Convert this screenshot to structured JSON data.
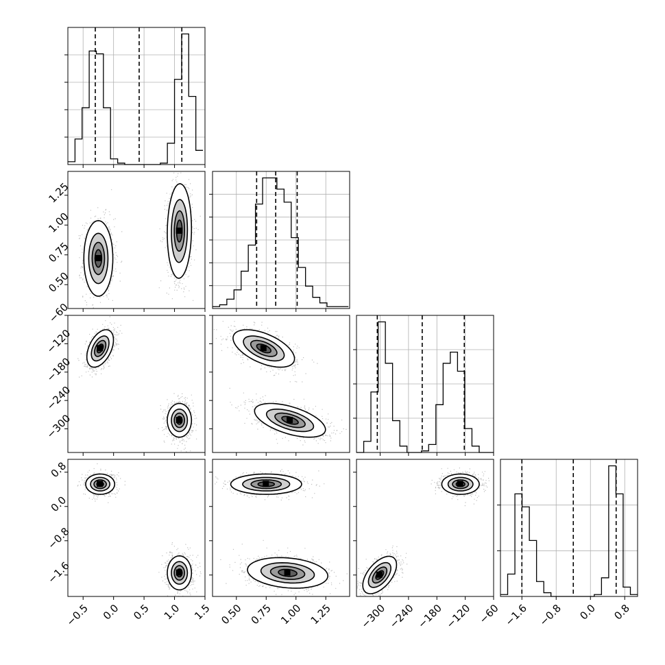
{
  "figure": {
    "type": "corner-plot",
    "parameters": 4,
    "style": {
      "frame_color": "#000000",
      "grid_color": "#b0b0b0",
      "hist_line_color": "#000000",
      "contour_fill_colors": [
        "#ffffff",
        "#cfcfcf",
        "#9a9a9a",
        "#5e5e5e"
      ],
      "point_color": "#6e6e6e",
      "density_peak_color": "#000000"
    }
  },
  "chart_data": [
    {
      "type": "histogram",
      "panel": "hist-0",
      "param": 0,
      "xlim": [
        -0.75,
        1.5
      ],
      "bin_edges": [
        -0.75,
        -0.633,
        -0.517,
        -0.4,
        -0.283,
        -0.167,
        -0.05,
        0.067,
        0.183,
        0.3,
        0.417,
        0.533,
        0.65,
        0.767,
        0.883,
        1.0,
        1.117,
        1.233,
        1.35,
        1.467
      ],
      "counts": [
        2,
        18,
        40,
        80,
        78,
        40,
        4,
        1,
        0,
        0,
        0,
        0,
        0,
        1,
        15,
        60,
        92,
        48,
        10
      ],
      "quantiles": [
        -0.3,
        0.42,
        1.12
      ],
      "y_gridlines": 4
    },
    {
      "type": "histogram",
      "panel": "hist-1",
      "param": 1,
      "xlim": [
        0.3,
        1.45
      ],
      "bin_edges": [
        0.3,
        0.36,
        0.42,
        0.48,
        0.54,
        0.6,
        0.66,
        0.72,
        0.78,
        0.84,
        0.9,
        0.96,
        1.02,
        1.08,
        1.14,
        1.2,
        1.26,
        1.32,
        1.38,
        1.44
      ],
      "counts": [
        1,
        2,
        5,
        10,
        20,
        34,
        56,
        70,
        70,
        64,
        57,
        38,
        22,
        12,
        6,
        3,
        1,
        1,
        1
      ],
      "quantiles": [
        0.67,
        0.83,
        1.01
      ],
      "y_gridlines": 5
    },
    {
      "type": "histogram",
      "panel": "hist-2",
      "param": 2,
      "xlim": [
        -350,
        -60
      ],
      "bin_edges": [
        -350,
        -334.7,
        -319.5,
        -304.2,
        -288.9,
        -273.7,
        -258.4,
        -243.2,
        -227.9,
        -212.6,
        -197.4,
        -182.1,
        -166.8,
        -151.6,
        -136.3,
        -121.1,
        -105.8,
        -90.5,
        -75.3,
        -60
      ],
      "counts": [
        0,
        7,
        38,
        82,
        56,
        20,
        4,
        0,
        0,
        1,
        5,
        30,
        56,
        63,
        51,
        15,
        4,
        0,
        0
      ],
      "quantiles": [
        -306,
        -211,
        -122
      ],
      "y_gridlines": 3
    },
    {
      "type": "histogram",
      "panel": "hist-3",
      "param": 3,
      "xlim": [
        -2.1,
        1.1
      ],
      "bin_edges": [
        -2.1,
        -1.932,
        -1.763,
        -1.595,
        -1.426,
        -1.258,
        -1.089,
        -0.921,
        -0.753,
        -0.584,
        -0.416,
        -0.247,
        -0.079,
        0.089,
        0.258,
        0.426,
        0.595,
        0.763,
        0.932,
        1.1
      ],
      "counts": [
        1,
        12,
        55,
        48,
        30,
        8,
        2,
        0,
        0,
        0,
        0,
        0,
        0,
        1,
        10,
        70,
        55,
        5,
        1
      ],
      "quantiles": [
        -1.6,
        -0.4,
        0.6
      ],
      "y_gridlines": 2
    },
    {
      "type": "density-contours",
      "panel": "pair-1-0",
      "x_param": 0,
      "y_param": 1,
      "xlim": [
        -0.75,
        1.5
      ],
      "ylim": [
        0.3,
        1.45
      ],
      "modes": [
        {
          "center": [
            -0.25,
            0.72
          ],
          "spread": [
            0.12,
            0.16
          ],
          "rho": 0.0,
          "weight": 0.5
        },
        {
          "center": [
            1.08,
            0.95
          ],
          "spread": [
            0.1,
            0.2
          ],
          "rho": 0.05,
          "weight": 0.5
        }
      ]
    },
    {
      "type": "density-contours",
      "panel": "pair-2-0",
      "x_param": 0,
      "y_param": 2,
      "xlim": [
        -0.75,
        1.5
      ],
      "ylim": [
        -350,
        -60
      ],
      "modes": [
        {
          "center": [
            -0.22,
            -130
          ],
          "spread": [
            0.11,
            20
          ],
          "rho": 0.45,
          "weight": 0.5
        },
        {
          "center": [
            1.08,
            -282
          ],
          "spread": [
            0.1,
            18
          ],
          "rho": 0.0,
          "weight": 0.5
        }
      ]
    },
    {
      "type": "density-contours",
      "panel": "pair-2-1",
      "x_param": 1,
      "y_param": 2,
      "xlim": [
        0.3,
        1.45
      ],
      "ylim": [
        -350,
        -60
      ],
      "modes": [
        {
          "center": [
            0.73,
            -130
          ],
          "spread": [
            0.13,
            20
          ],
          "rho": -0.55,
          "weight": 0.5
        },
        {
          "center": [
            0.95,
            -282
          ],
          "spread": [
            0.15,
            18
          ],
          "rho": -0.55,
          "weight": 0.5
        }
      ]
    },
    {
      "type": "density-contours",
      "panel": "pair-3-0",
      "x_param": 0,
      "y_param": 3,
      "xlim": [
        -0.75,
        1.5
      ],
      "ylim": [
        -2.1,
        1.1
      ],
      "modes": [
        {
          "center": [
            -0.22,
            0.52
          ],
          "spread": [
            0.12,
            0.12
          ],
          "rho": 0.0,
          "weight": 0.5
        },
        {
          "center": [
            1.08,
            -1.55
          ],
          "spread": [
            0.1,
            0.2
          ],
          "rho": 0.0,
          "weight": 0.5
        }
      ]
    },
    {
      "type": "density-contours",
      "panel": "pair-3-1",
      "x_param": 1,
      "y_param": 3,
      "xlim": [
        0.3,
        1.45
      ],
      "ylim": [
        -2.1,
        1.1
      ],
      "modes": [
        {
          "center": [
            0.75,
            0.52
          ],
          "spread": [
            0.15,
            0.12
          ],
          "rho": 0.0,
          "weight": 0.5
        },
        {
          "center": [
            0.93,
            -1.55
          ],
          "spread": [
            0.17,
            0.18
          ],
          "rho": -0.2,
          "weight": 0.5
        }
      ]
    },
    {
      "type": "density-contours",
      "panel": "pair-3-2",
      "x_param": 2,
      "y_param": 3,
      "xlim": [
        -350,
        -60
      ],
      "ylim": [
        -2.1,
        1.1
      ],
      "modes": [
        {
          "center": [
            -301,
            -1.6
          ],
          "spread": [
            18,
            0.22
          ],
          "rho": 0.55,
          "weight": 0.5
        },
        {
          "center": [
            -130,
            0.52
          ],
          "spread": [
            20,
            0.12
          ],
          "rho": 0.0,
          "weight": 0.5
        }
      ]
    }
  ],
  "axes": {
    "x_ticks": [
      {
        "param": 0,
        "values": [
          -0.5,
          0.0,
          0.5,
          1.0,
          1.5
        ],
        "labels": [
          "−0.5",
          "0.0",
          "0.5",
          "1.0",
          "1.5"
        ]
      },
      {
        "param": 1,
        "values": [
          0.5,
          0.75,
          1.0,
          1.25
        ],
        "labels": [
          "0.50",
          "0.75",
          "1.00",
          "1.25"
        ]
      },
      {
        "param": 2,
        "values": [
          -300,
          -240,
          -180,
          -120,
          -60
        ],
        "labels": [
          "−300",
          "−240",
          "−180",
          "−120",
          "−60"
        ]
      },
      {
        "param": 3,
        "values": [
          -1.6,
          -0.8,
          0.0,
          0.8
        ],
        "labels": [
          "−1.6",
          "−0.8",
          "0.0",
          "0.8"
        ]
      }
    ],
    "y_ticks": [
      {
        "param": 1,
        "values": [
          0.5,
          0.75,
          1.0,
          1.25
        ],
        "labels": [
          "0.50",
          "0.75",
          "1.00",
          "1.25"
        ]
      },
      {
        "param": 2,
        "values": [
          -300,
          -240,
          -180,
          -120,
          -60
        ],
        "labels": [
          "−300",
          "−240",
          "−180",
          "−120",
          "−60"
        ]
      },
      {
        "param": 3,
        "values": [
          -1.6,
          -0.8,
          0.0,
          0.8
        ],
        "labels": [
          "−1.6",
          "−0.8",
          "0.0",
          "0.8"
        ]
      }
    ]
  }
}
